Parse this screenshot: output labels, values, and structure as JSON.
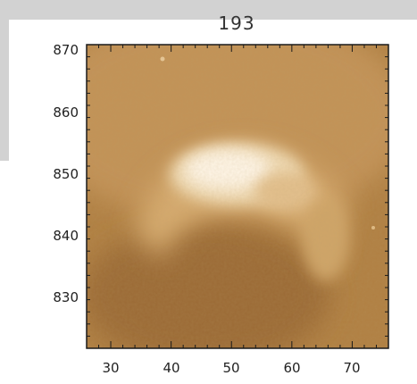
{
  "title": "193",
  "image": {
    "description_colors": {
      "background": "#b07f42",
      "mid": "#c99a5c",
      "bright": "#fff6e8",
      "dark": "#9a6a34"
    },
    "x_ticks": [
      "30",
      "40",
      "50",
      "60",
      "70"
    ],
    "y_ticks": [
      "870",
      "860",
      "850",
      "840",
      "830"
    ],
    "x_range": [
      26,
      76
    ],
    "y_range": [
      821,
      871
    ]
  }
}
